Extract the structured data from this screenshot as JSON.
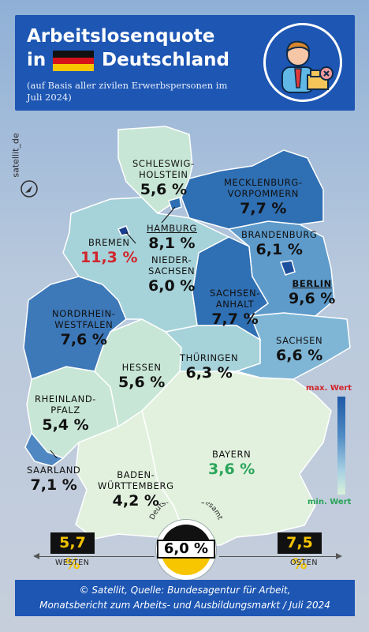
{
  "header": {
    "title_line1": "Arbeitslosenquote",
    "title_in": "in",
    "title_country": "Deutschland",
    "subtitle": "(auf Basis aller zivilen Erwerbspersonen im Juli 2024)"
  },
  "brand": "satellit_de",
  "states": [
    {
      "name": "SCHLESWIG-\nHOLSTEIN",
      "value": "5,6 %",
      "rate": 5.6
    },
    {
      "name": "MECKLENBURG-\nVORPOMMERN",
      "value": "7,7 %",
      "rate": 7.7
    },
    {
      "name": "HAMBURG",
      "value": "8,1 %",
      "rate": 8.1
    },
    {
      "name": "BREMEN",
      "value": "11,3 %",
      "rate": 11.3
    },
    {
      "name": "BRANDENBURG",
      "value": "6,1 %",
      "rate": 6.1
    },
    {
      "name": "NIEDER-\nSACHSEN",
      "value": "6,0 %",
      "rate": 6.0
    },
    {
      "name": "BERLIN",
      "value": "9,6 %",
      "rate": 9.6
    },
    {
      "name": "SACHSEN-\nANHALT",
      "value": "7,7 %",
      "rate": 7.7
    },
    {
      "name": "NORDRHEIN-\nWESTFALEN",
      "value": "7,6 %",
      "rate": 7.6
    },
    {
      "name": "SACHSEN",
      "value": "6,6 %",
      "rate": 6.6
    },
    {
      "name": "HESSEN",
      "value": "5,6 %",
      "rate": 5.6
    },
    {
      "name": "THÜRINGEN",
      "value": "6,3 %",
      "rate": 6.3
    },
    {
      "name": "RHEINLAND-\nPFALZ",
      "value": "5,4 %",
      "rate": 5.4
    },
    {
      "name": "SAARLAND",
      "value": "7,1 %",
      "rate": 7.1
    },
    {
      "name": "BAYERN",
      "value": "3,6 %",
      "rate": 3.6
    },
    {
      "name": "BADEN-\nWÜRTTEMBERG",
      "value": "4,2 %",
      "rate": 4.2
    }
  ],
  "legend": {
    "max": "max. Wert",
    "min": "min. Wert",
    "max_color": "#d0262b",
    "min_color": "#2aa55a"
  },
  "summary": {
    "west_value": "5,7 %",
    "west_label": "WESTEN",
    "east_value": "7,5 %",
    "east_label": "OSTEN",
    "total_value": "6,0 %",
    "total_label": "Deutschland insgesamt"
  },
  "footer": {
    "line1": "© Satellit, Quelle: Bundesagentur für Arbeit,",
    "line2": "Monatsbericht zum Arbeits- und Ausbildungsmarkt / Juli 2024"
  },
  "colors": {
    "header_bg": "#1d56b3",
    "dark": "#2f6fb3",
    "mid": "#5e9bcb",
    "light": "#a6d2d9",
    "pale": "#c8e6d6",
    "palest": "#e2f1de",
    "highlight_red": "#d0262b",
    "highlight_green": "#2aa55a"
  }
}
